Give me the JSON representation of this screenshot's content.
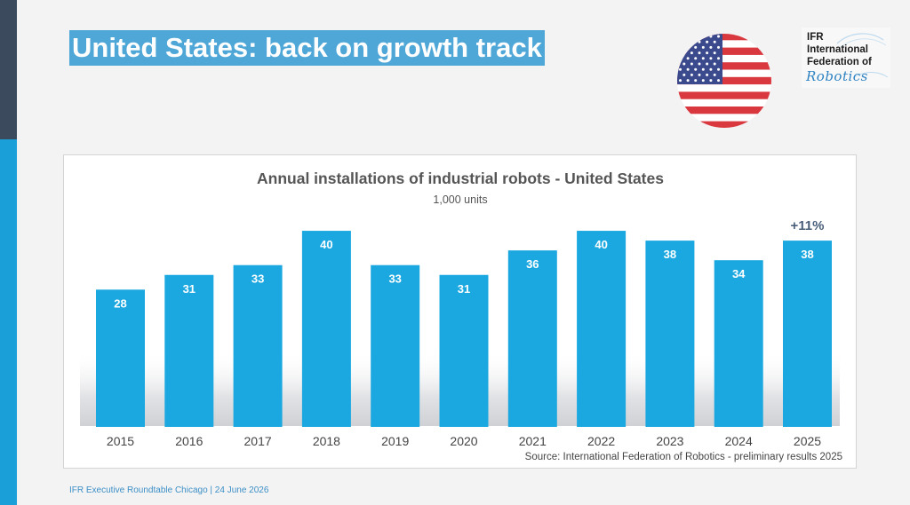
{
  "slide": {
    "title": "United States: back on growth track",
    "footer": "IFR Executive Roundtable Chicago  |  24 June 2026"
  },
  "logo": {
    "line1": "IFR",
    "line2": "International",
    "line3": "Federation of",
    "script": "Robotics"
  },
  "chart_data": {
    "type": "bar",
    "title": "Annual installations of industrial robots - United States",
    "subtitle": "1,000 units",
    "categories": [
      "2015",
      "2016",
      "2017",
      "2018",
      "2019",
      "2020",
      "2021",
      "2022",
      "2023",
      "2024",
      "2025"
    ],
    "values": [
      28,
      31,
      33,
      40,
      33,
      31,
      36,
      40,
      38,
      34,
      38
    ],
    "annotation": {
      "text": "+11%",
      "category": "2025"
    },
    "source": "Source: International Federation of Robotics - preliminary results 2025",
    "xlabel": "",
    "ylabel": "",
    "ylim": [
      0,
      42
    ],
    "grid": false,
    "legend": "none",
    "bar_color": "#1ba8e0"
  },
  "colors": {
    "accent": "#1a9fd9",
    "dark": "#3c4a5e",
    "title_bg": "#4fa7d8"
  },
  "icons": {
    "flag": "usa-flag-icon",
    "logo": "ifr-logo"
  }
}
